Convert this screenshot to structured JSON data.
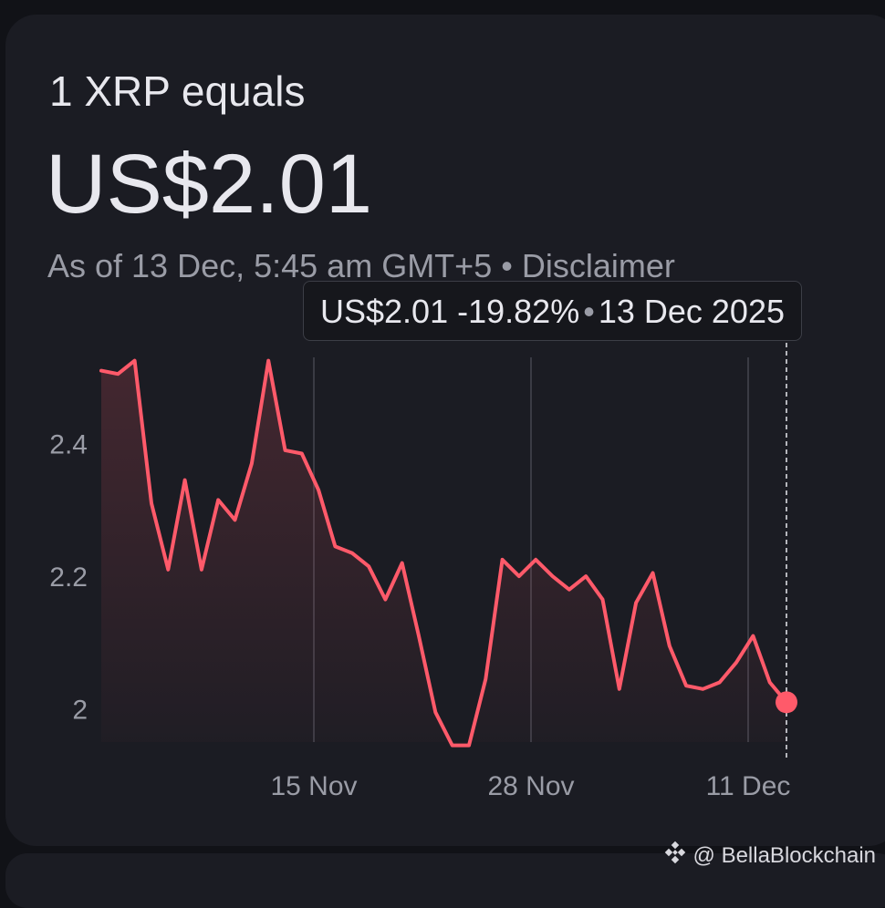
{
  "header": {
    "label": "1 XRP equals",
    "price": "US$2.01",
    "as_of": "As of 13 Dec, 5:45 am GMT+5 • Disclaimer"
  },
  "tooltip": {
    "price": "US$2.01",
    "change": "-19.82%",
    "separator": "•",
    "date": "13 Dec 2025"
  },
  "watermark": {
    "text": "@ BellaBlockchain",
    "icon": "binance-logo-icon"
  },
  "colors": {
    "line": "#ff5a6a",
    "background": "#1b1c23",
    "grid": "#3a3b44",
    "axis_text": "#9a9ca6"
  },
  "chart_data": {
    "type": "line",
    "title": "",
    "xlabel": "",
    "ylabel": "",
    "x_ticks": [
      "15 Nov",
      "28 Nov",
      "11 Dec"
    ],
    "y_ticks": [
      "2",
      "2.2",
      "2.4"
    ],
    "ylim": [
      1.95,
      2.53
    ],
    "grid": "vertical",
    "selected_point": {
      "date": "13 Dec 2025",
      "value": 2.01
    },
    "series": [
      {
        "values": [
          2.51,
          2.505,
          2.525,
          2.31,
          2.21,
          2.345,
          2.21,
          2.315,
          2.285,
          2.37,
          2.525,
          2.39,
          2.385,
          2.33,
          2.245,
          2.235,
          2.215,
          2.165,
          2.22,
          2.11,
          1.995,
          1.945,
          1.945,
          2.045,
          2.225,
          2.2,
          2.225,
          2.2,
          2.18,
          2.2,
          2.165,
          2.03,
          2.16,
          2.205,
          2.095,
          2.035,
          2.03,
          2.04,
          2.07,
          2.11,
          2.04,
          2.01
        ]
      }
    ]
  }
}
